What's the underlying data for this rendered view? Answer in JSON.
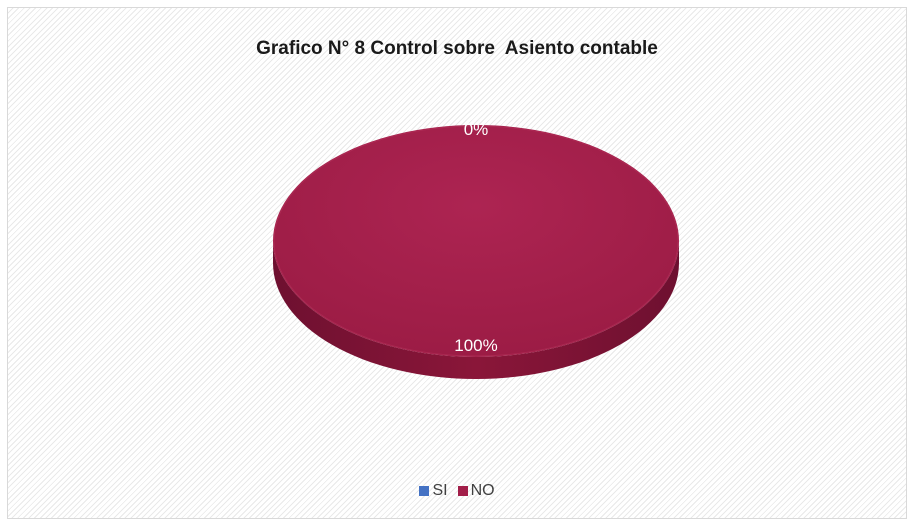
{
  "chart_data": {
    "type": "pie",
    "title": "Grafico N° 8 Control sobre  Asiento contable",
    "categories": [
      "SI",
      "NO"
    ],
    "values": [
      0,
      100
    ],
    "data_labels": [
      "0%",
      "100%"
    ],
    "colors": [
      "#4472c4",
      "#a21e49"
    ],
    "legend_position": "bottom",
    "style": "3d",
    "legend": [
      {
        "label": "SI",
        "color": "#4472c4"
      },
      {
        "label": "NO",
        "color": "#a21e49"
      }
    ]
  }
}
